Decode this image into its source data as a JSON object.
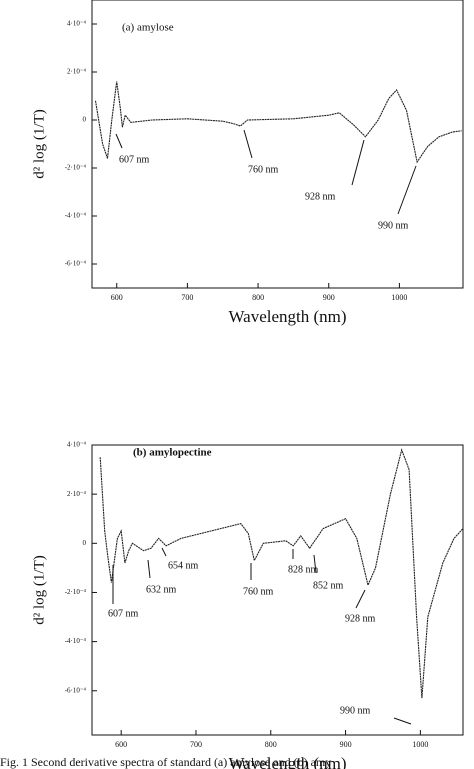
{
  "chart_data": [
    {
      "type": "line",
      "title": "(a) amylose",
      "xlabel": "Wavelength (nm)",
      "ylabel": "d² log (1/T)",
      "xlim": [
        565,
        1090
      ],
      "ylim": [
        -0.0007,
        0.0005
      ],
      "xticks": [
        600,
        700,
        800,
        900,
        1000
      ],
      "yticks": [
        {
          "value": 0.0004,
          "label": "4·10⁻⁴"
        },
        {
          "value": 0.0002,
          "label": "2·10⁻⁴"
        },
        0,
        {
          "value": -0.0002,
          "label": "-2·10⁻⁴"
        },
        {
          "value": -0.0004,
          "label": "-4·10⁻⁴"
        },
        {
          "value": -0.0006,
          "label": "-6·10⁻⁴"
        }
      ],
      "series": [
        {
          "color": "#222222",
          "x": [
            570,
            580,
            587,
            593,
            600,
            605,
            608,
            612,
            620,
            650,
            700,
            750,
            765,
            775,
            785,
            850,
            900,
            915,
            935,
            952,
            970,
            985,
            996,
            1010,
            1025,
            1040,
            1056,
            1075,
            1088
          ],
          "values": [
            8e-05,
            -0.0001,
            -0.00016,
            0,
            0.00016,
            5e-05,
            -3e-05,
            2e-05,
            -1e-05,
            0,
            5e-06,
            -5e-06,
            -1.5e-05,
            -2.5e-05,
            0,
            5e-06,
            2e-05,
            3e-05,
            -2e-05,
            -7e-05,
            0,
            9e-05,
            0.000125,
            4e-05,
            -0.000175,
            -0.00011,
            -7e-05,
            -5e-05,
            -4.5e-05
          ]
        }
      ],
      "annotations": [
        "607 nm",
        "760 nm",
        "928 nm",
        "990 nm"
      ]
    },
    {
      "type": "line",
      "title": "(b) amylopectine",
      "xlabel": "Wavelength (nm)",
      "ylabel": "d² log (1/T)",
      "xlim": [
        561,
        1057
      ],
      "ylim": [
        -0.00078,
        0.0004
      ],
      "xticks": [
        600,
        700,
        800,
        900,
        1000
      ],
      "yticks": [
        {
          "value": 0.0004,
          "label": "4·10⁻⁴"
        },
        {
          "value": 0.0002,
          "label": "2·10⁻⁴"
        },
        0,
        {
          "value": -0.0002,
          "label": "-2·10⁻⁴"
        },
        {
          "value": -0.0004,
          "label": "-4·10⁻⁴"
        },
        {
          "value": -0.0006,
          "label": "-6·10⁻⁴"
        }
      ],
      "series": [
        {
          "color": "#222222",
          "x": [
            572,
            578,
            582,
            587,
            595,
            600,
            605,
            610,
            615,
            630,
            640,
            650,
            660,
            680,
            720,
            760,
            770,
            778,
            790,
            820,
            830,
            840,
            852,
            870,
            900,
            915,
            930,
            940,
            960,
            975,
            985,
            995,
            1002,
            1010,
            1030,
            1045,
            1057
          ],
          "values": [
            0.00035,
            5e-05,
            -5e-05,
            -0.00016,
            2e-05,
            5e-05,
            -8e-05,
            -3e-05,
            0,
            -3e-05,
            -2e-05,
            2e-05,
            -1e-05,
            2e-05,
            5e-05,
            8e-05,
            4e-05,
            -7e-05,
            0,
            1e-05,
            -1e-05,
            3e-05,
            -2e-05,
            6e-05,
            0.0001,
            2e-05,
            -0.00017,
            -0.0001,
            0.0002,
            0.00038,
            0.0003,
            -0.0003,
            -0.00063,
            -0.0003,
            -8e-05,
            2e-05,
            6e-05
          ]
        }
      ],
      "annotations": [
        "607 nm",
        "632 nm",
        "654 nm",
        "760 nm",
        "828 nm",
        "852 nm",
        "928 nm",
        "990 nm"
      ]
    }
  ],
  "caption": "Fig. 1   Second derivative spectra of standard (a) amylose and (b) amy"
}
